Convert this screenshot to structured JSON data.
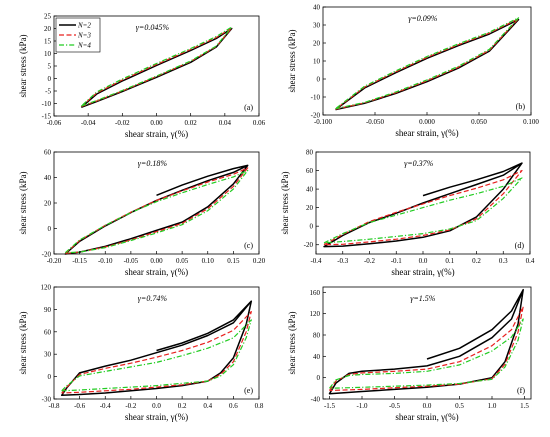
{
  "figure": {
    "y_label": "shear stress (kPa)",
    "x_label": "shear strain, γ(%)"
  },
  "legend": [
    {
      "name": "N=2",
      "color": "#000000",
      "dash": "solid"
    },
    {
      "name": "N=3",
      "color": "#e8201e",
      "dash": "dashed"
    },
    {
      "name": "N=4",
      "color": "#22cc22",
      "dash": "dashdot"
    }
  ],
  "chart_data": [
    {
      "type": "line",
      "panel_label": "(a)",
      "annotation": "γ=0.045%",
      "xlim": [
        -0.06,
        0.06
      ],
      "ylim": [
        -15,
        25
      ],
      "xticks": [
        "-0.06",
        "-0.04",
        "-0.02",
        "0.00",
        "0.02",
        "0.04",
        "0.06"
      ],
      "yticks": [
        "-15",
        "-10",
        "-5",
        "0",
        "5",
        "10",
        "15",
        "20",
        "25"
      ],
      "series": [
        {
          "name": "N=2",
          "x": [
            -0.044,
            -0.035,
            -0.02,
            0.0,
            0.02,
            0.035,
            0.044,
            0.035,
            0.02,
            0.0,
            -0.02,
            -0.035,
            -0.044
          ],
          "y": [
            -11.5,
            -9.2,
            -5.2,
            0.5,
            6.5,
            12.6,
            20.0,
            16.0,
            11.2,
            5.2,
            -1.0,
            -6.2,
            -11.5
          ]
        },
        {
          "name": "N=3",
          "x": [
            -0.044,
            -0.035,
            -0.02,
            0.0,
            0.02,
            0.035,
            0.044,
            0.035,
            0.02,
            0.0,
            -0.02,
            -0.035,
            -0.044
          ],
          "y": [
            -11.2,
            -9.0,
            -5.0,
            0.8,
            6.8,
            12.8,
            20.2,
            16.4,
            11.6,
            5.6,
            -0.6,
            -5.8,
            -11.2
          ]
        },
        {
          "name": "N=4",
          "x": [
            -0.044,
            -0.035,
            -0.02,
            0.0,
            0.02,
            0.035,
            0.044,
            0.035,
            0.02,
            0.0,
            -0.02,
            -0.035,
            -0.044
          ],
          "y": [
            -11.0,
            -8.8,
            -4.8,
            1.0,
            7.0,
            13.0,
            20.6,
            16.8,
            12.0,
            6.0,
            -0.2,
            -5.4,
            -11.0
          ]
        }
      ]
    },
    {
      "type": "line",
      "panel_label": "(b)",
      "annotation": "γ=0.09%",
      "xlim": [
        -0.1,
        0.1
      ],
      "ylim": [
        -20,
        40
      ],
      "xticks": [
        "-0.100",
        "-0.050",
        "0.000",
        "0.050",
        "0.100"
      ],
      "yticks": [
        "-20",
        "-10",
        "0",
        "10",
        "20",
        "30",
        "40"
      ],
      "series": [
        {
          "name": "N=2",
          "x": [
            -0.088,
            -0.06,
            -0.03,
            0.0,
            0.03,
            0.06,
            0.088,
            0.06,
            0.03,
            0.0,
            -0.03,
            -0.06,
            -0.088
          ],
          "y": [
            -17.0,
            -13.5,
            -8.0,
            -1.5,
            6.0,
            15.5,
            33.0,
            25.0,
            18.5,
            11.5,
            3.5,
            -5.0,
            -17.0
          ]
        },
        {
          "name": "N=3",
          "x": [
            -0.088,
            -0.06,
            -0.03,
            0.0,
            0.03,
            0.06,
            0.088,
            0.06,
            0.03,
            0.0,
            -0.03,
            -0.06,
            -0.088
          ],
          "y": [
            -16.8,
            -13.2,
            -7.6,
            -1.0,
            6.5,
            16.0,
            33.5,
            25.5,
            19.0,
            12.0,
            4.0,
            -4.5,
            -16.8
          ]
        },
        {
          "name": "N=4",
          "x": [
            -0.088,
            -0.06,
            -0.03,
            0.0,
            0.03,
            0.06,
            0.088,
            0.06,
            0.03,
            0.0,
            -0.03,
            -0.06,
            -0.088
          ],
          "y": [
            -16.5,
            -13.0,
            -7.2,
            -0.5,
            7.0,
            16.5,
            34.0,
            26.0,
            19.5,
            12.5,
            4.5,
            -4.0,
            -16.5
          ]
        }
      ]
    },
    {
      "type": "line",
      "panel_label": "(c)",
      "annotation": "γ=0.18%",
      "xlim": [
        -0.2,
        0.2
      ],
      "ylim": [
        -20,
        60
      ],
      "xticks": [
        "-0.20",
        "-0.15",
        "-0.10",
        "-0.05",
        "0.00",
        "0.05",
        "0.10",
        "0.15",
        "0.20"
      ],
      "yticks": [
        "-20",
        "0",
        "20",
        "40",
        "60"
      ],
      "series": [
        {
          "name": "N=2",
          "x": [
            0.0,
            0.05,
            0.1,
            0.15,
            0.178,
            0.15,
            0.1,
            0.05,
            0.0,
            -0.05,
            -0.1,
            -0.15,
            -0.178,
            -0.15,
            -0.1,
            -0.05,
            0.0,
            0.05,
            0.1,
            0.15,
            0.178
          ],
          "y": [
            26.0,
            34.0,
            41.0,
            47.0,
            49.5,
            35.0,
            17.0,
            5.0,
            -1.5,
            -8.0,
            -14.0,
            -18.5,
            -20.0,
            -10.0,
            2.0,
            12.5,
            22.0,
            30.0,
            37.5,
            44.0,
            49.5
          ]
        },
        {
          "name": "N=3",
          "x": [
            -0.178,
            -0.15,
            -0.1,
            -0.05,
            0.0,
            0.05,
            0.1,
            0.15,
            0.178,
            0.15,
            0.1,
            0.05,
            0.0,
            -0.05,
            -0.1,
            -0.15,
            -0.178
          ],
          "y": [
            -19.5,
            -9.5,
            2.5,
            12.8,
            22.0,
            29.5,
            36.5,
            42.5,
            47.5,
            33.0,
            15.5,
            4.0,
            -2.5,
            -9.0,
            -14.5,
            -18.5,
            -19.5
          ]
        },
        {
          "name": "N=4",
          "x": [
            -0.178,
            -0.15,
            -0.1,
            -0.05,
            0.0,
            0.05,
            0.1,
            0.15,
            0.178,
            0.15,
            0.1,
            0.05,
            0.0,
            -0.05,
            -0.1,
            -0.15,
            -0.178
          ],
          "y": [
            -19.0,
            -9.0,
            2.5,
            12.5,
            21.0,
            28.0,
            34.5,
            40.5,
            45.5,
            31.0,
            14.0,
            3.0,
            -3.5,
            -9.5,
            -15.0,
            -18.5,
            -19.0
          ]
        }
      ]
    },
    {
      "type": "line",
      "panel_label": "(d)",
      "annotation": "γ=0.37%",
      "xlim": [
        -0.4,
        0.4
      ],
      "ylim": [
        -30,
        80
      ],
      "xticks": [
        "-0.4",
        "-0.3",
        "-0.2",
        "-0.1",
        "0.0",
        "0.1",
        "0.2",
        "0.3",
        "0.4"
      ],
      "yticks": [
        "-20",
        "0",
        "20",
        "40",
        "60",
        "80"
      ],
      "series": [
        {
          "name": "N=2",
          "x": [
            0.0,
            0.1,
            0.2,
            0.3,
            0.37,
            0.3,
            0.2,
            0.1,
            0.0,
            -0.1,
            -0.2,
            -0.3,
            -0.37,
            -0.3,
            -0.2,
            -0.1,
            0.0,
            0.1,
            0.2,
            0.3,
            0.37
          ],
          "y": [
            33.0,
            42.0,
            50.0,
            59.0,
            68.0,
            40.0,
            10.0,
            -5.0,
            -12.0,
            -16.0,
            -19.0,
            -21.5,
            -22.0,
            -10.0,
            4.0,
            14.0,
            25.0,
            35.0,
            45.0,
            55.0,
            68.0
          ]
        },
        {
          "name": "N=3",
          "x": [
            -0.37,
            -0.3,
            -0.2,
            -0.1,
            0.0,
            0.1,
            0.2,
            0.3,
            0.37,
            0.3,
            0.2,
            0.1,
            0.0,
            -0.1,
            -0.2,
            -0.3,
            -0.37
          ],
          "y": [
            -20.0,
            -9.0,
            5.0,
            15.0,
            24.0,
            33.0,
            41.0,
            50.0,
            60.0,
            35.0,
            8.0,
            -4.0,
            -10.0,
            -14.0,
            -17.0,
            -19.5,
            -20.0
          ]
        },
        {
          "name": "N=4",
          "x": [
            -0.37,
            -0.3,
            -0.2,
            -0.1,
            0.0,
            0.1,
            0.2,
            0.3,
            0.37,
            0.3,
            0.2,
            0.1,
            0.0,
            -0.1,
            -0.2,
            -0.3,
            -0.37
          ],
          "y": [
            -18.0,
            -8.0,
            4.0,
            12.0,
            20.0,
            28.0,
            35.0,
            43.0,
            52.0,
            30.0,
            6.0,
            -3.0,
            -8.0,
            -11.0,
            -14.0,
            -16.5,
            -18.0
          ]
        }
      ]
    },
    {
      "type": "line",
      "panel_label": "(e)",
      "annotation": "γ=0.74%",
      "xlim": [
        -0.8,
        0.8
      ],
      "ylim": [
        -30,
        120
      ],
      "xticks": [
        "-0.8",
        "-0.6",
        "-0.4",
        "-0.2",
        "0.0",
        "0.2",
        "0.4",
        "0.6",
        "0.8"
      ],
      "yticks": [
        "-30",
        "0",
        "30",
        "60",
        "90",
        "120"
      ],
      "series": [
        {
          "name": "N=2",
          "x": [
            0.0,
            0.2,
            0.4,
            0.6,
            0.74,
            0.7,
            0.6,
            0.5,
            0.4,
            0.2,
            0.0,
            -0.2,
            -0.4,
            -0.6,
            -0.74,
            -0.7,
            -0.6,
            -0.4,
            -0.2,
            0.0,
            0.2,
            0.4,
            0.6,
            0.74
          ],
          "y": [
            35.0,
            45.0,
            58.0,
            76.0,
            101.0,
            70.0,
            25.0,
            5.0,
            -6.0,
            -12.0,
            -16.0,
            -19.0,
            -22.0,
            -24.0,
            -25.0,
            -15.0,
            5.0,
            14.0,
            22.0,
            32.0,
            42.0,
            55.0,
            72.0,
            101.0
          ]
        },
        {
          "name": "N=3",
          "x": [
            -0.74,
            -0.7,
            -0.6,
            -0.4,
            -0.2,
            0.0,
            0.2,
            0.4,
            0.6,
            0.74,
            0.7,
            0.6,
            0.5,
            0.4,
            0.2,
            0.0,
            -0.2,
            -0.4,
            -0.6,
            -0.74
          ],
          "y": [
            -22.0,
            -14.0,
            3.0,
            11.0,
            18.0,
            26.0,
            35.0,
            46.0,
            62.0,
            87.0,
            60.0,
            20.0,
            3.0,
            -6.0,
            -11.0,
            -14.0,
            -17.0,
            -19.0,
            -21.0,
            -22.0
          ]
        },
        {
          "name": "N=4",
          "x": [
            -0.74,
            -0.7,
            -0.6,
            -0.4,
            -0.2,
            0.0,
            0.2,
            0.4,
            0.6,
            0.74,
            0.7,
            0.6,
            0.5,
            0.4,
            0.2,
            0.0,
            -0.2,
            -0.4,
            -0.6,
            -0.74
          ],
          "y": [
            -19.0,
            -12.0,
            1.0,
            7.0,
            13.0,
            19.0,
            28.0,
            38.0,
            52.0,
            76.0,
            52.0,
            16.0,
            1.0,
            -6.0,
            -9.0,
            -12.0,
            -14.0,
            -16.0,
            -18.0,
            -19.0
          ]
        }
      ]
    },
    {
      "type": "line",
      "panel_label": "(f)",
      "annotation": "γ=1.5%",
      "xlim": [
        -1.6,
        1.6
      ],
      "ylim": [
        -40,
        170
      ],
      "xticks": [
        "-1.5",
        "-1.0",
        "-0.5",
        "0.0",
        "0.5",
        "1.0",
        "1.5"
      ],
      "yticks": [
        "-40",
        "0",
        "40",
        "80",
        "120",
        "160"
      ],
      "series": [
        {
          "name": "N=2",
          "x": [
            0.0,
            0.5,
            1.0,
            1.3,
            1.48,
            1.4,
            1.2,
            1.0,
            0.5,
            0.0,
            -0.5,
            -1.0,
            -1.5,
            -1.4,
            -1.2,
            -1.0,
            -0.5,
            0.0,
            0.5,
            1.0,
            1.3,
            1.48
          ],
          "y": [
            35.0,
            55.0,
            90.0,
            125.0,
            165.0,
            100.0,
            30.0,
            0.0,
            -12.0,
            -18.0,
            -22.0,
            -26.0,
            -30.0,
            -10.0,
            8.0,
            12.0,
            16.0,
            22.0,
            40.0,
            75.0,
            110.0,
            165.0
          ]
        },
        {
          "name": "N=3",
          "x": [
            -1.5,
            -1.4,
            -1.2,
            -1.0,
            -0.5,
            0.0,
            0.5,
            1.0,
            1.3,
            1.48,
            1.4,
            1.2,
            1.0,
            0.5,
            0.0,
            -0.5,
            -1.0,
            -1.5
          ],
          "y": [
            -24.0,
            -6.0,
            6.0,
            9.0,
            12.0,
            16.0,
            30.0,
            60.0,
            90.0,
            133.0,
            85.0,
            25.0,
            -2.0,
            -12.0,
            -16.0,
            -19.0,
            -22.0,
            -24.0
          ]
        },
        {
          "name": "N=4",
          "x": [
            -1.5,
            -1.4,
            -1.2,
            -1.0,
            -0.5,
            0.0,
            0.5,
            1.0,
            1.3,
            1.48,
            1.4,
            1.2,
            1.0,
            0.5,
            0.0,
            -0.5,
            -1.0,
            -1.5
          ],
          "y": [
            -20.0,
            -4.0,
            4.0,
            6.0,
            8.0,
            12.0,
            24.0,
            50.0,
            76.0,
            110.0,
            70.0,
            20.0,
            -3.0,
            -11.0,
            -14.0,
            -16.0,
            -18.0,
            -20.0
          ]
        }
      ]
    }
  ]
}
